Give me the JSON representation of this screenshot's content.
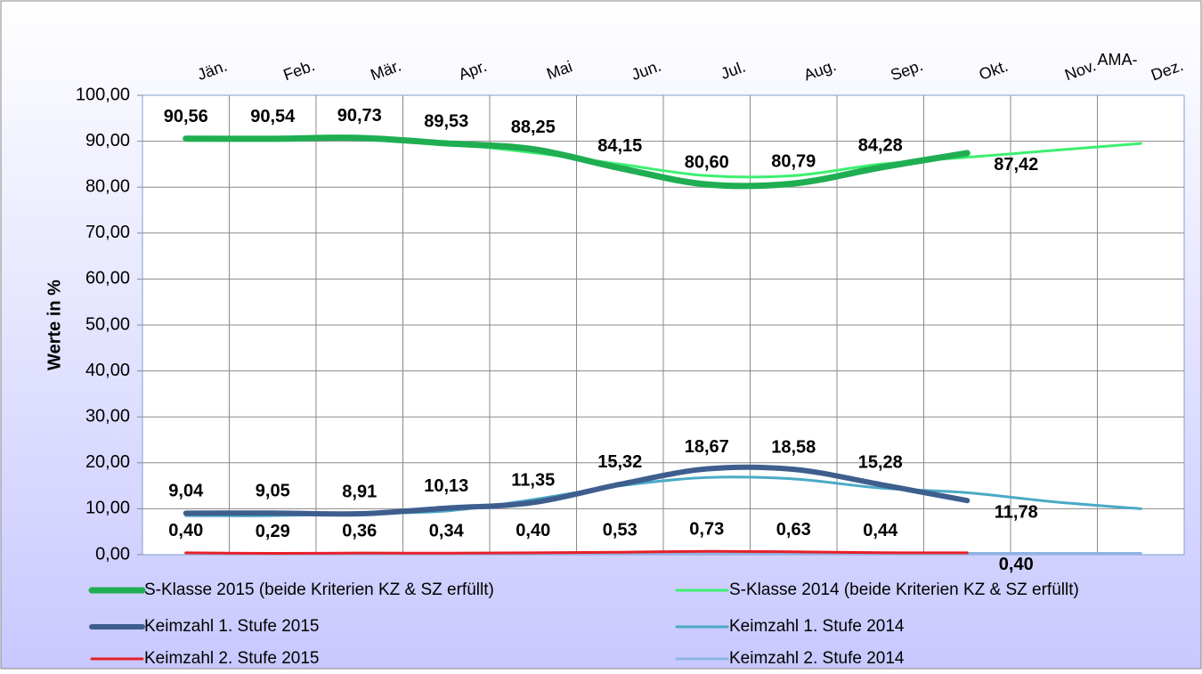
{
  "chart_data": {
    "type": "line",
    "y_label": "Werte in %",
    "annotation": "AMA-",
    "categories": [
      "Jän.",
      "Feb.",
      "Mär.",
      "Apr.",
      "Mai",
      "Jun.",
      "Jul.",
      "Aug.",
      "Sep.",
      "Okt.",
      "Nov.",
      "Dez."
    ],
    "ylim": [
      0,
      100
    ],
    "yticks": [
      {
        "value": 0,
        "label": "0,00"
      },
      {
        "value": 10,
        "label": "10,00"
      },
      {
        "value": 20,
        "label": "20,00"
      },
      {
        "value": 30,
        "label": "30,00"
      },
      {
        "value": 40,
        "label": "40,00"
      },
      {
        "value": 50,
        "label": "50,00"
      },
      {
        "value": 60,
        "label": "60,00"
      },
      {
        "value": 70,
        "label": "70,00"
      },
      {
        "value": 80,
        "label": "80,00"
      },
      {
        "value": 90,
        "label": "90,00"
      },
      {
        "value": 100,
        "label": "100,00"
      }
    ],
    "grid": true,
    "series": [
      {
        "name": "S-Klasse 2015 (beide Kriterien KZ & SZ erfüllt)",
        "color": "#1fae52",
        "width": 7,
        "values": [
          90.56,
          90.54,
          90.73,
          89.53,
          88.25,
          84.15,
          80.6,
          80.79,
          84.28,
          87.42,
          null,
          null
        ],
        "value_labels": [
          "90,56",
          "90,54",
          "90,73",
          "89,53",
          "88,25",
          "84,15",
          "80,60",
          "80,79",
          "84,28",
          "87,42",
          null,
          null
        ]
      },
      {
        "name": "S-Klasse 2014 (beide Kriterien KZ & SZ erfüllt)",
        "color": "#3cf070",
        "width": 3,
        "values": [
          90.5,
          90.8,
          90.5,
          89.5,
          87.5,
          85,
          82.5,
          82.5,
          85,
          86.5,
          88,
          89.5
        ]
      },
      {
        "name": "Keimzahl 1. Stufe 2015",
        "color": "#3e5e8e",
        "width": 6,
        "values": [
          9.04,
          9.05,
          8.91,
          10.13,
          11.35,
          15.32,
          18.67,
          18.58,
          15.28,
          11.78,
          null,
          null
        ],
        "value_labels": [
          "9,04",
          "9,05",
          "8,91",
          "10,13",
          "11,35",
          "15,32",
          "18,67",
          "18,58",
          "15,28",
          "11,78",
          null,
          null
        ]
      },
      {
        "name": "Keimzahl 1. Stufe 2014",
        "color": "#4aaac6",
        "width": 3,
        "values": [
          8.5,
          8.5,
          9,
          9.5,
          12,
          15,
          16.8,
          16.5,
          14.5,
          13.5,
          11.5,
          10
        ]
      },
      {
        "name": "Keimzahl 2. Stufe 2015",
        "color": "#e8202a",
        "width": 3,
        "values": [
          0.4,
          0.29,
          0.36,
          0.34,
          0.4,
          0.53,
          0.73,
          0.63,
          0.44,
          0.4,
          null,
          null
        ],
        "value_labels": [
          "0,40",
          "0,29",
          "0,36",
          "0,34",
          "0,40",
          "0,53",
          "0,73",
          "0,63",
          "0,44",
          "0,40",
          null,
          null
        ]
      },
      {
        "name": "Keimzahl 2. Stufe 2014",
        "color": "#8fb4e3",
        "width": 3,
        "values": [
          0.3,
          0.3,
          0.3,
          0.3,
          0.3,
          0.3,
          0.3,
          0.3,
          0.3,
          0.3,
          0.3,
          0.3
        ]
      }
    ]
  }
}
